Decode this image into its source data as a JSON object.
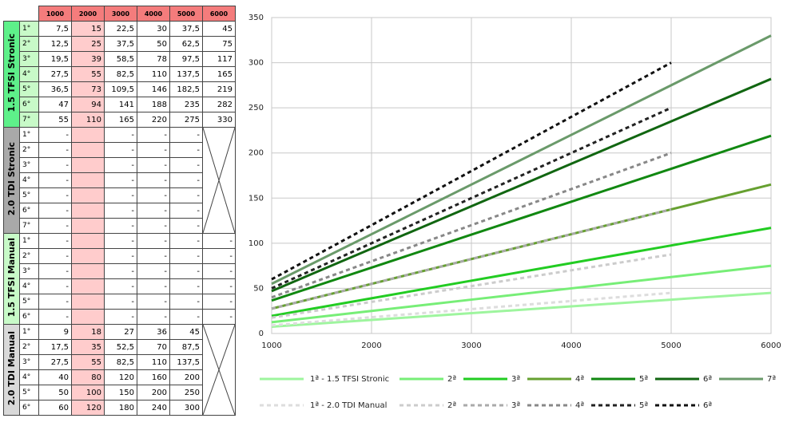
{
  "table": {
    "columns": [
      "1000",
      "2000",
      "3000",
      "4000",
      "5000",
      "6000"
    ],
    "groups": [
      {
        "label": "1.5 TFSI Stronic",
        "rows": [
          {
            "gear": "1°",
            "cells": [
              "7,5",
              "15",
              "22,5",
              "30",
              "37,5",
              "45"
            ]
          },
          {
            "gear": "2°",
            "cells": [
              "12,5",
              "25",
              "37,5",
              "50",
              "62,5",
              "75"
            ]
          },
          {
            "gear": "3°",
            "cells": [
              "19,5",
              "39",
              "58,5",
              "78",
              "97,5",
              "117"
            ]
          },
          {
            "gear": "4°",
            "cells": [
              "27,5",
              "55",
              "82,5",
              "110",
              "137,5",
              "165"
            ]
          },
          {
            "gear": "5°",
            "cells": [
              "36,5",
              "73",
              "109,5",
              "146",
              "182,5",
              "219"
            ]
          },
          {
            "gear": "6°",
            "cells": [
              "47",
              "94",
              "141",
              "188",
              "235",
              "282"
            ]
          },
          {
            "gear": "7°",
            "cells": [
              "55",
              "110",
              "165",
              "220",
              "275",
              "330"
            ]
          }
        ]
      },
      {
        "label": "2.0 TDI Stronic",
        "rows": [
          {
            "gear": "1°",
            "cells": [
              "-",
              null,
              "-",
              "-",
              "-"
            ]
          },
          {
            "gear": "2°",
            "cells": [
              "-",
              null,
              "-",
              "-",
              "-"
            ]
          },
          {
            "gear": "3°",
            "cells": [
              "-",
              null,
              "-",
              "-",
              "-"
            ]
          },
          {
            "gear": "4°",
            "cells": [
              "-",
              null,
              "-",
              "-",
              "-"
            ]
          },
          {
            "gear": "5°",
            "cells": [
              "-",
              null,
              "-",
              "-",
              "-"
            ]
          },
          {
            "gear": "6°",
            "cells": [
              "-",
              null,
              "-",
              "-",
              "-"
            ]
          },
          {
            "gear": "7°",
            "cells": [
              "-",
              null,
              "-",
              "-",
              "-"
            ]
          }
        ]
      },
      {
        "label": "1.5 TFSI Manual",
        "rows": [
          {
            "gear": "1°",
            "cells": [
              "-",
              null,
              "-",
              "-",
              "-",
              "-"
            ]
          },
          {
            "gear": "2°",
            "cells": [
              "-",
              null,
              "-",
              "-",
              "-",
              "-"
            ]
          },
          {
            "gear": "3°",
            "cells": [
              "-",
              null,
              "-",
              "-",
              "-",
              "-"
            ]
          },
          {
            "gear": "4°",
            "cells": [
              "-",
              null,
              "-",
              "-",
              "-",
              "-"
            ]
          },
          {
            "gear": "5°",
            "cells": [
              "-",
              null,
              "-",
              "-",
              "-",
              "-"
            ]
          },
          {
            "gear": "6°",
            "cells": [
              "-",
              null,
              "-",
              "-",
              "-",
              "-"
            ]
          }
        ]
      },
      {
        "label": "2.0 TDI Manual",
        "rows": [
          {
            "gear": "1°",
            "cells": [
              "9",
              "18",
              "27",
              "36",
              "45"
            ]
          },
          {
            "gear": "2°",
            "cells": [
              "17,5",
              "35",
              "52,5",
              "70",
              "87,5"
            ]
          },
          {
            "gear": "3°",
            "cells": [
              "27,5",
              "55",
              "82,5",
              "110",
              "137,5"
            ]
          },
          {
            "gear": "4°",
            "cells": [
              "40",
              "80",
              "120",
              "160",
              "200"
            ]
          },
          {
            "gear": "5°",
            "cells": [
              "50",
              "100",
              "150",
              "200",
              "250"
            ]
          },
          {
            "gear": "6°",
            "cells": [
              "60",
              "120",
              "180",
              "240",
              "300"
            ]
          }
        ]
      }
    ]
  },
  "chart_data": {
    "type": "line",
    "x": [
      1000,
      2000,
      3000,
      4000,
      5000,
      6000
    ],
    "xlim": [
      1000,
      6000
    ],
    "xticks": [
      1000,
      2000,
      3000,
      4000,
      5000,
      6000
    ],
    "ylim": [
      0,
      350
    ],
    "yticks": [
      0,
      50,
      100,
      150,
      200,
      250,
      300,
      350
    ],
    "grid": true,
    "series": [
      {
        "name": "1ª - 1.5 TFSI Stronic",
        "color": "#9ef59e",
        "dashed": false,
        "values": [
          7.5,
          15,
          22.5,
          30,
          37.5,
          45
        ]
      },
      {
        "name": "2ª",
        "color": "#77ee77",
        "dashed": false,
        "values": [
          12.5,
          25,
          37.5,
          50,
          62.5,
          75
        ]
      },
      {
        "name": "3ª",
        "color": "#22cc22",
        "dashed": false,
        "values": [
          19.5,
          39,
          58.5,
          78,
          97.5,
          117
        ]
      },
      {
        "name": "4ª",
        "color": "#66a030",
        "dashed": false,
        "values": [
          27.5,
          55,
          82.5,
          110,
          137.5,
          165
        ]
      },
      {
        "name": "5ª",
        "color": "#118811",
        "dashed": false,
        "values": [
          36.5,
          73,
          109.5,
          146,
          182.5,
          219
        ]
      },
      {
        "name": "6ª",
        "color": "#116611",
        "dashed": false,
        "values": [
          47,
          94,
          141,
          188,
          235,
          282
        ]
      },
      {
        "name": "7ª",
        "color": "#6a9a6a",
        "dashed": false,
        "values": [
          55,
          110,
          165,
          220,
          275,
          330
        ]
      },
      {
        "name": "1ª - 2.0 TDI Manual",
        "color": "#dddddd",
        "dashed": true,
        "values": [
          9,
          18,
          27,
          36,
          45,
          null
        ]
      },
      {
        "name": "2ª",
        "color": "#cccccc",
        "dashed": true,
        "values": [
          17.5,
          35,
          52.5,
          70,
          87.5,
          null
        ]
      },
      {
        "name": "3ª",
        "color": "#aaaaaa",
        "dashed": true,
        "values": [
          27.5,
          55,
          82.5,
          110,
          137.5,
          null
        ]
      },
      {
        "name": "4ª",
        "color": "#888888",
        "dashed": true,
        "values": [
          40,
          80,
          120,
          160,
          200,
          null
        ]
      },
      {
        "name": "5ª",
        "color": "#222222",
        "dashed": true,
        "values": [
          50,
          100,
          150,
          200,
          250,
          null
        ]
      },
      {
        "name": "6ª",
        "color": "#111111",
        "dashed": true,
        "values": [
          60,
          120,
          180,
          240,
          300,
          null
        ]
      }
    ]
  }
}
